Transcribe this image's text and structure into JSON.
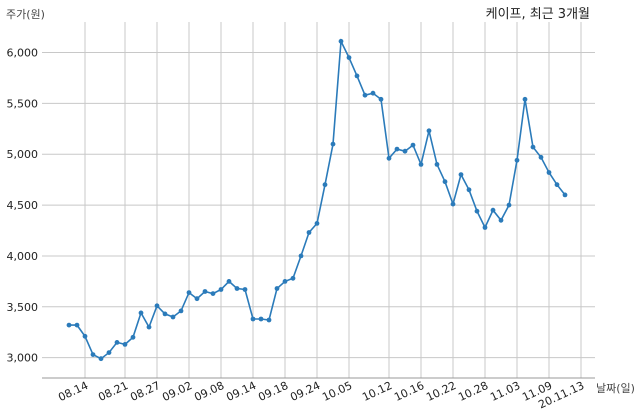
{
  "chart_data": {
    "type": "line",
    "title": "케이프, 최근 3개월",
    "xlabel": "날짜(일)",
    "ylabel": "주가(원)",
    "ylim": [
      2800,
      6300
    ],
    "yticks": [
      3000,
      3500,
      4000,
      4500,
      5000,
      5500,
      6000
    ],
    "ytick_labels": [
      "3,000",
      "3,500",
      "4,000",
      "4,500",
      "5,000",
      "5,500",
      "6,000"
    ],
    "x_tick_labels": [
      "08.14",
      "08.21",
      "08.27",
      "09.02",
      "09.08",
      "09.14",
      "09.18",
      "09.24",
      "10.05",
      "10.12",
      "10.16",
      "10.22",
      "10.28",
      "11.03",
      "11.09",
      "20.11.13"
    ],
    "x_tick_index": [
      2,
      7,
      11,
      15,
      19,
      23,
      27,
      31,
      35,
      40,
      44,
      48,
      52,
      56,
      60,
      64
    ],
    "grid": true,
    "series": [
      {
        "color": "#2b7bba",
        "values": [
          3320,
          3320,
          3210,
          3030,
          2990,
          3050,
          3150,
          3130,
          3200,
          3440,
          3300,
          3510,
          3430,
          3400,
          3460,
          3640,
          3580,
          3650,
          3630,
          3670,
          3750,
          3680,
          3670,
          3380,
          3380,
          3370,
          3680,
          3750,
          3780,
          4000,
          4230,
          4320,
          4700,
          5100,
          6110,
          5950,
          5770,
          5580,
          5600,
          5540,
          4960,
          5050,
          5030,
          5090,
          4900,
          5230,
          4900,
          4730,
          4510,
          4800,
          4650,
          4440,
          4280,
          4450,
          4350,
          4500,
          4940,
          5540,
          5070,
          4970,
          4820,
          4700,
          4600
        ]
      }
    ]
  }
}
